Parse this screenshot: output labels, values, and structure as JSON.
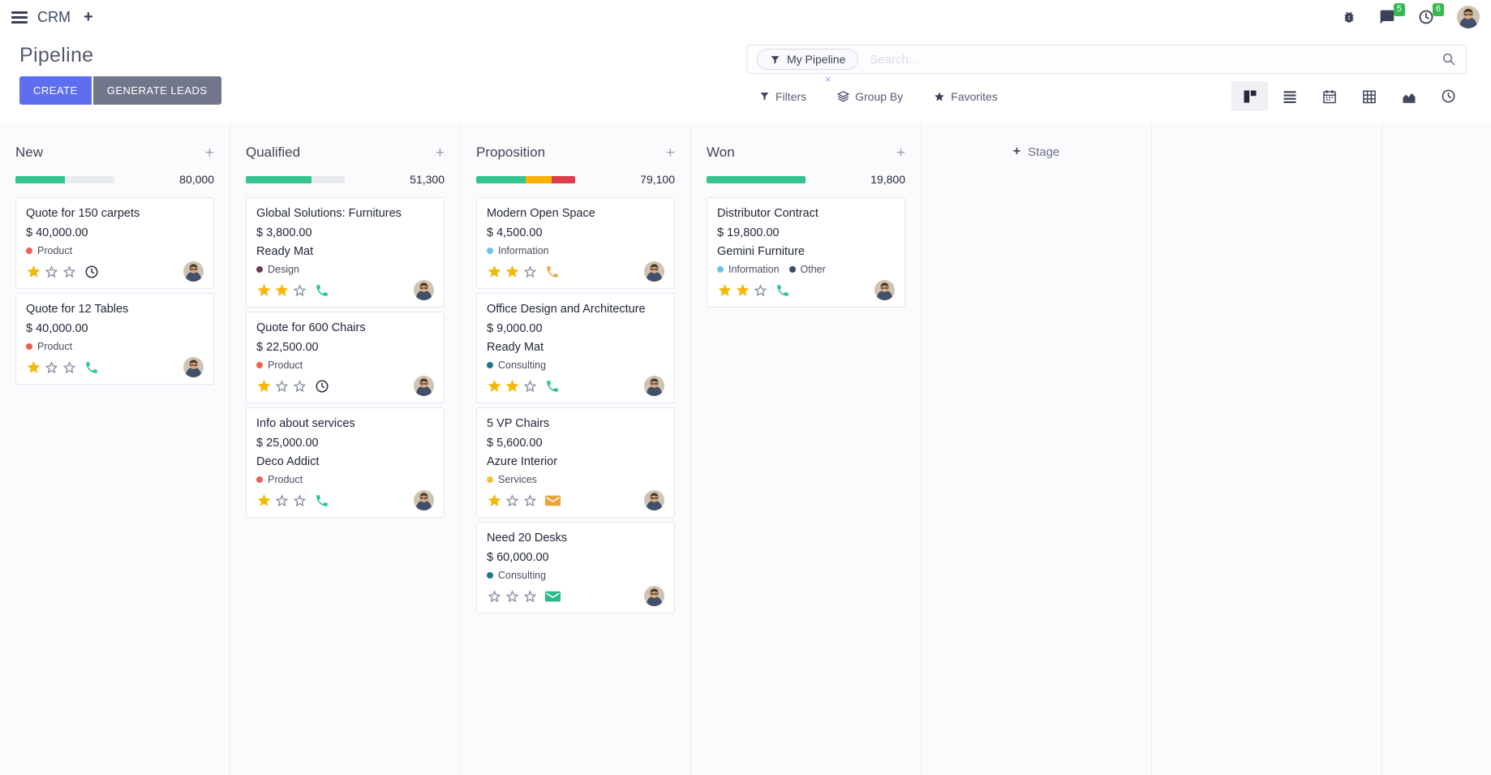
{
  "navbar": {
    "app_name": "CRM",
    "messages_badge": "5",
    "activities_badge": "6"
  },
  "control_panel": {
    "title": "Pipeline",
    "create_label": "CREATE",
    "generate_leads_label": "GENERATE LEADS",
    "search": {
      "facet_label": "My Pipeline",
      "placeholder": "Search...",
      "remove_symbol": "×"
    },
    "filter_menus": {
      "filters": "Filters",
      "group_by": "Group By",
      "favorites": "Favorites"
    }
  },
  "view_switcher": {
    "active": "kanban",
    "views": [
      "kanban",
      "list",
      "calendar",
      "pivot",
      "graph",
      "activity"
    ]
  },
  "board": {
    "add_stage_label": "Stage",
    "columns": [
      {
        "name": "New",
        "total": "80,000",
        "progress": [
          {
            "color": "#35c38f",
            "pct": 50
          }
        ],
        "cards": [
          {
            "title": "Quote for 150 carpets",
            "amount": "$ 40,000.00",
            "tags": [
              {
                "label": "Product",
                "color": "#ec6152"
              }
            ],
            "stars": 1,
            "action": {
              "type": "clock",
              "color": "#2e3347"
            }
          },
          {
            "title": "Quote for 12 Tables",
            "amount": "$ 40,000.00",
            "tags": [
              {
                "label": "Product",
                "color": "#ec6152"
              }
            ],
            "stars": 1,
            "action": {
              "type": "phone",
              "color": "#2cc48e"
            }
          }
        ]
      },
      {
        "name": "Qualified",
        "total": "51,300",
        "progress": [
          {
            "color": "#35c38f",
            "pct": 66
          }
        ],
        "cards": [
          {
            "title": "Global Solutions: Furnitures",
            "amount": "$ 3,800.00",
            "partner": "Ready Mat",
            "tags": [
              {
                "label": "Design",
                "color": "#6e3b52"
              }
            ],
            "stars": 2,
            "action": {
              "type": "phone",
              "color": "#2cc48e"
            }
          },
          {
            "title": "Quote for 600 Chairs",
            "amount": "$ 22,500.00",
            "tags": [
              {
                "label": "Product",
                "color": "#ec6152"
              }
            ],
            "stars": 1,
            "action": {
              "type": "clock",
              "color": "#2e3347"
            }
          },
          {
            "title": "Info about services",
            "amount": "$ 25,000.00",
            "partner": "Deco Addict",
            "tags": [
              {
                "label": "Product",
                "color": "#ec6152"
              }
            ],
            "stars": 1,
            "action": {
              "type": "phone",
              "color": "#2cc48e"
            }
          }
        ]
      },
      {
        "name": "Proposition",
        "total": "79,100",
        "progress": [
          {
            "color": "#35c38f",
            "pct": 50
          },
          {
            "color": "#ffb002",
            "pct": 26
          },
          {
            "color": "#dc3f4e",
            "pct": 24
          }
        ],
        "cards": [
          {
            "title": "Modern Open Space",
            "amount": "$ 4,500.00",
            "tags": [
              {
                "label": "Information",
                "color": "#6ec1ea"
              }
            ],
            "stars": 2,
            "action": {
              "type": "phone",
              "color": "#eaa94a"
            }
          },
          {
            "title": "Office Design and Architecture",
            "amount": "$ 9,000.00",
            "partner": "Ready Mat",
            "tags": [
              {
                "label": "Consulting",
                "color": "#1d7a8a"
              }
            ],
            "stars": 2,
            "action": {
              "type": "phone",
              "color": "#2cc48e"
            }
          },
          {
            "title": "5 VP Chairs",
            "amount": "$ 5,600.00",
            "partner": "Azure Interior",
            "tags": [
              {
                "label": "Services",
                "color": "#f2c43d"
              }
            ],
            "stars": 1,
            "action": {
              "type": "envelope",
              "color": "#eba53f"
            }
          },
          {
            "title": "Need 20 Desks",
            "amount": "$ 60,000.00",
            "tags": [
              {
                "label": "Consulting",
                "color": "#1d7a8a"
              }
            ],
            "stars": 0,
            "action": {
              "type": "envelope",
              "color": "#2dba88"
            }
          }
        ]
      },
      {
        "name": "Won",
        "total": "19,800",
        "progress": [
          {
            "color": "#35c38f",
            "pct": 100
          }
        ],
        "cards": [
          {
            "title": "Distributor Contract",
            "amount": "$ 19,800.00",
            "partner": "Gemini Furniture",
            "tags": [
              {
                "label": "Information",
                "color": "#6ec1ea"
              },
              {
                "label": "Other",
                "color": "#3c4a66"
              }
            ],
            "stars": 2,
            "action": {
              "type": "phone",
              "color": "#2cc48e"
            }
          }
        ]
      }
    ]
  },
  "colors": {
    "primary_button": "#5d6fee",
    "secondary_button": "#71768a",
    "progress_green": "#35c38f",
    "progress_orange": "#ffb002",
    "progress_red": "#dc3f4e",
    "progress_track": "#e9ecef",
    "star_filled": "#f3b909",
    "badge_green": "#33b94e"
  }
}
